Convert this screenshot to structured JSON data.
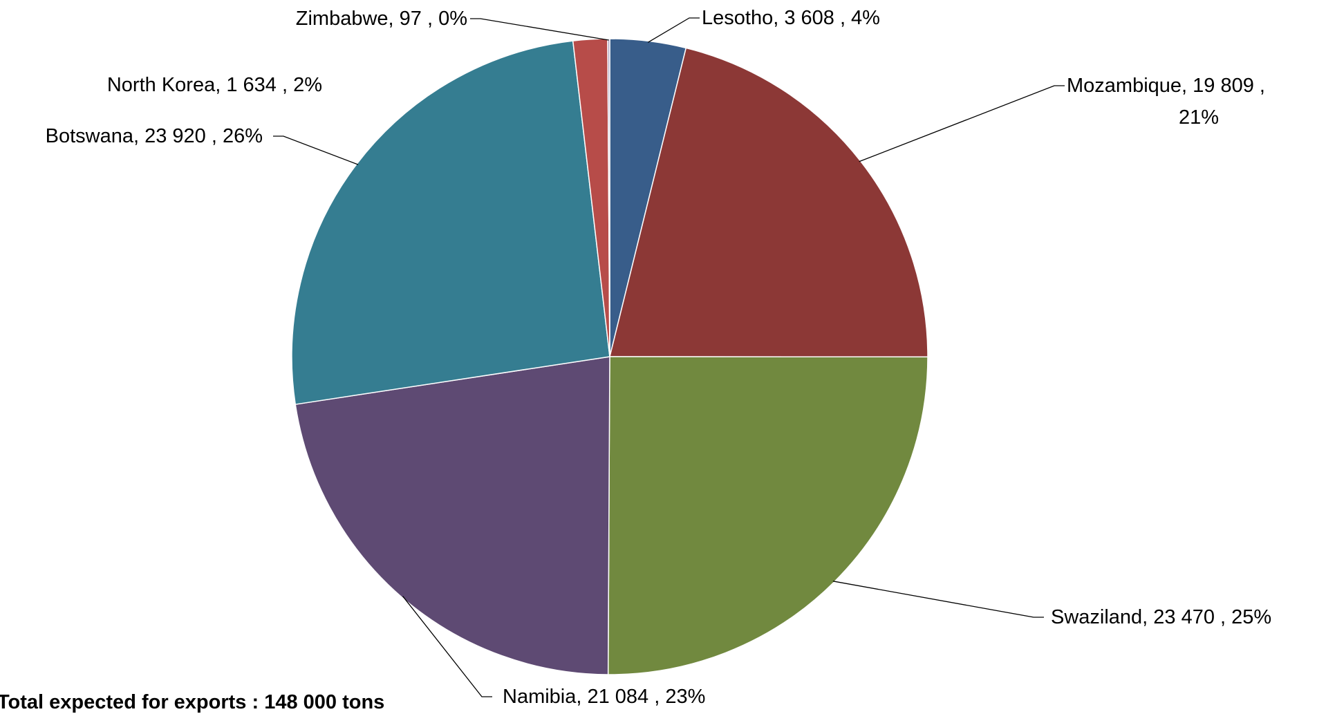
{
  "chart_data": {
    "type": "pie",
    "title": "",
    "slices": [
      {
        "label": "Lesotho",
        "value": 3608,
        "percent": "4%",
        "color": "#385D8A",
        "text": "Lesotho,  3 608 , 4%"
      },
      {
        "label": "Mozambique",
        "value": 19809,
        "percent": "21%",
        "color": "#8C3836",
        "text": [
          "Mozambique,  19 809 ,",
          "21%"
        ]
      },
      {
        "label": "Swaziland",
        "value": 23470,
        "percent": "25%",
        "color": "#71893F",
        "text": "Swaziland,  23 470 , 25%"
      },
      {
        "label": "Namibia",
        "value": 21084,
        "percent": "23%",
        "color": "#5E4A73",
        "text": "Namibia,  21 084 , 23%"
      },
      {
        "label": "Botswana",
        "value": 23920,
        "percent": "26%",
        "color": "#357D91",
        "text": "Botswana,  23 920 , 26%"
      },
      {
        "label": "North Korea",
        "value": 1634,
        "percent": "2%",
        "color": "#B74C49",
        "text": "North Korea,  1 634 , 2%"
      },
      {
        "label": "Zimbabwe",
        "value": 97,
        "percent": "0%",
        "color": "#A8A0C0",
        "text": "Zimbabwe,  97 , 0%"
      }
    ]
  },
  "footnote": "Total expected for exports : 148 000 tons"
}
